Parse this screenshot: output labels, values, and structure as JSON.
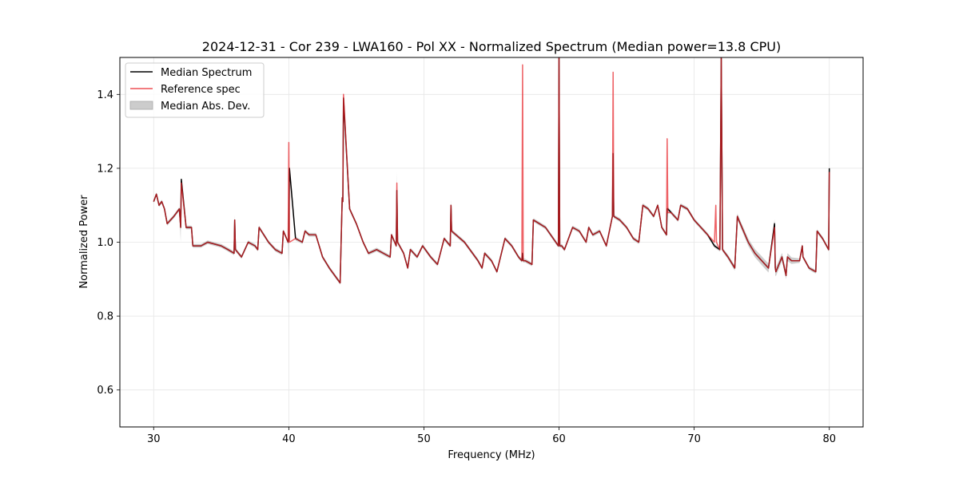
{
  "chart_data": {
    "type": "line",
    "title": "2024-12-31 - Cor 239 - LWA160 - Pol XX - Normalized Spectrum (Median power=13.8 CPU)",
    "xlabel": "Frequency (MHz)",
    "ylabel": "Normalized Power",
    "xlim": [
      27.5,
      82.5
    ],
    "ylim": [
      0.5,
      1.5
    ],
    "x_ticks": [
      30,
      40,
      50,
      60,
      70,
      80
    ],
    "y_ticks": [
      0.6,
      0.8,
      1.0,
      1.2,
      1.4
    ],
    "grid": true,
    "legend": {
      "placement": "top-left",
      "entries": [
        {
          "label": "Median Spectrum",
          "style": "line",
          "color": "#000000"
        },
        {
          "label": "Reference spec",
          "style": "line",
          "color": "#e8262b"
        },
        {
          "label": "Median Abs. Dev.",
          "style": "patch",
          "color": "#cccccc"
        }
      ]
    },
    "colors": {
      "median": "#000000",
      "reference": "#e8262b",
      "mad": "#c8c8c8"
    },
    "series": [
      {
        "name": "Median Spectrum",
        "x": [
          30.0,
          30.2,
          30.4,
          30.6,
          30.8,
          31.0,
          31.5,
          31.9,
          32.0,
          32.05,
          32.4,
          32.8,
          32.9,
          33.5,
          34.0,
          35.0,
          35.5,
          35.95,
          36.0,
          36.05,
          36.5,
          37.0,
          37.5,
          37.7,
          37.8,
          38.5,
          39.0,
          39.5,
          39.6,
          39.95,
          40.0,
          40.05,
          40.5,
          41.0,
          41.2,
          41.5,
          42.0,
          42.5,
          43.0,
          43.8,
          43.95,
          44.0,
          44.05,
          44.5,
          45.0,
          45.5,
          45.9,
          46.5,
          47.0,
          47.5,
          47.6,
          47.95,
          48.0,
          48.05,
          48.5,
          48.8,
          49.0,
          49.5,
          49.9,
          50.5,
          51.0,
          51.5,
          51.95,
          52.0,
          52.05,
          53.0,
          54.0,
          54.3,
          54.5,
          55.0,
          55.4,
          56.0,
          56.5,
          57.0,
          57.25,
          57.3,
          57.35,
          57.5,
          58.0,
          58.1,
          59.0,
          59.95,
          60.0,
          60.05,
          60.2,
          60.4,
          61.0,
          61.5,
          62.0,
          62.2,
          62.5,
          63.0,
          63.5,
          63.95,
          64.0,
          64.05,
          64.5,
          65.0,
          65.5,
          65.9,
          66.2,
          66.6,
          67.0,
          67.3,
          67.6,
          67.95,
          68.0,
          68.05,
          68.3,
          68.8,
          69.0,
          69.5,
          70.0,
          70.5,
          71.0,
          71.5,
          71.9,
          72.0,
          72.1,
          72.5,
          73.0,
          73.2,
          73.3,
          74.0,
          74.5,
          75.0,
          75.5,
          75.95,
          76.0,
          76.05,
          76.5,
          76.8,
          76.9,
          77.2,
          77.8,
          78.0,
          78.05,
          78.5,
          79.0,
          79.1,
          79.5,
          79.95,
          80.0
        ],
        "y": [
          1.11,
          1.13,
          1.1,
          1.11,
          1.09,
          1.05,
          1.07,
          1.09,
          1.04,
          1.17,
          1.04,
          1.04,
          0.99,
          0.99,
          1.0,
          0.99,
          0.98,
          0.97,
          1.06,
          0.98,
          0.96,
          1.0,
          0.99,
          0.98,
          1.04,
          1.0,
          0.98,
          0.97,
          1.03,
          1.0,
          1.01,
          1.2,
          1.01,
          1.0,
          1.03,
          1.02,
          1.02,
          0.96,
          0.93,
          0.89,
          1.12,
          1.11,
          1.39,
          1.09,
          1.05,
          1.0,
          0.97,
          0.98,
          0.97,
          0.96,
          1.02,
          0.99,
          1.14,
          1.0,
          0.97,
          0.93,
          0.98,
          0.96,
          0.99,
          0.96,
          0.94,
          1.01,
          0.99,
          1.1,
          1.03,
          1.0,
          0.95,
          0.93,
          0.97,
          0.95,
          0.92,
          1.01,
          0.99,
          0.96,
          0.95,
          0.97,
          0.95,
          0.95,
          0.94,
          1.06,
          1.04,
          0.99,
          1.5,
          0.99,
          0.99,
          0.98,
          1.04,
          1.03,
          1.0,
          1.04,
          1.02,
          1.03,
          0.99,
          1.07,
          1.24,
          1.07,
          1.06,
          1.04,
          1.01,
          1.0,
          1.1,
          1.09,
          1.07,
          1.1,
          1.04,
          1.02,
          1.09,
          1.09,
          1.08,
          1.06,
          1.1,
          1.09,
          1.06,
          1.04,
          1.02,
          0.99,
          0.98,
          1.5,
          0.98,
          0.96,
          0.93,
          1.07,
          1.06,
          1.0,
          0.97,
          0.95,
          0.93,
          1.05,
          0.93,
          0.92,
          0.96,
          0.91,
          0.96,
          0.95,
          0.95,
          0.99,
          0.96,
          0.93,
          0.92,
          1.03,
          1.01,
          0.98,
          1.2
        ]
      },
      {
        "name": "Reference spec",
        "x": [
          30.0,
          30.2,
          30.4,
          30.6,
          30.8,
          31.0,
          31.5,
          31.9,
          32.0,
          32.05,
          32.4,
          32.8,
          32.9,
          33.5,
          34.0,
          35.0,
          35.5,
          35.95,
          36.0,
          36.05,
          36.5,
          37.0,
          37.5,
          37.7,
          37.8,
          38.5,
          39.0,
          39.5,
          39.6,
          39.95,
          40.0,
          40.05,
          40.5,
          41.0,
          41.2,
          41.5,
          42.0,
          42.5,
          43.0,
          43.8,
          43.95,
          44.0,
          44.05,
          44.5,
          45.0,
          45.5,
          45.9,
          46.5,
          47.0,
          47.5,
          47.6,
          47.95,
          48.0,
          48.05,
          48.5,
          48.8,
          49.0,
          49.5,
          49.9,
          50.5,
          51.0,
          51.5,
          51.95,
          52.0,
          52.05,
          53.0,
          54.0,
          54.3,
          54.5,
          55.0,
          55.4,
          56.0,
          56.5,
          57.0,
          57.25,
          57.3,
          57.35,
          57.5,
          58.0,
          58.1,
          59.0,
          59.95,
          60.0,
          60.05,
          60.2,
          60.4,
          61.0,
          61.5,
          62.0,
          62.2,
          62.5,
          63.0,
          63.5,
          63.95,
          64.0,
          64.05,
          64.5,
          65.0,
          65.5,
          65.9,
          66.2,
          66.6,
          67.0,
          67.3,
          67.6,
          67.95,
          68.0,
          68.05,
          68.3,
          68.8,
          69.0,
          69.5,
          70.0,
          70.5,
          71.0,
          71.5,
          71.6,
          71.65,
          71.9,
          72.0,
          72.1,
          72.5,
          73.0,
          73.2,
          73.3,
          74.0,
          74.5,
          75.0,
          75.5,
          75.95,
          76.0,
          76.05,
          76.5,
          76.8,
          76.9,
          77.2,
          77.8,
          78.0,
          78.05,
          78.5,
          79.0,
          79.1,
          79.5,
          79.95,
          80.0
        ],
        "y": [
          1.11,
          1.13,
          1.1,
          1.11,
          1.09,
          1.05,
          1.07,
          1.09,
          1.04,
          1.16,
          1.04,
          1.04,
          0.99,
          0.99,
          1.0,
          0.99,
          0.98,
          0.97,
          1.06,
          0.98,
          0.96,
          1.0,
          0.99,
          0.98,
          1.04,
          1.0,
          0.98,
          0.97,
          1.03,
          1.0,
          1.27,
          1.0,
          1.01,
          1.0,
          1.03,
          1.02,
          1.02,
          0.96,
          0.93,
          0.89,
          1.12,
          1.11,
          1.4,
          1.09,
          1.05,
          1.0,
          0.97,
          0.98,
          0.97,
          0.96,
          1.02,
          0.99,
          1.16,
          1.0,
          0.97,
          0.93,
          0.98,
          0.96,
          0.99,
          0.96,
          0.94,
          1.01,
          0.99,
          1.1,
          1.03,
          1.0,
          0.95,
          0.93,
          0.97,
          0.95,
          0.92,
          1.01,
          0.99,
          0.96,
          0.95,
          1.48,
          0.95,
          0.95,
          0.94,
          1.06,
          1.04,
          0.99,
          1.5,
          0.99,
          0.99,
          0.98,
          1.04,
          1.03,
          1.0,
          1.04,
          1.02,
          1.03,
          0.99,
          1.07,
          1.46,
          1.07,
          1.06,
          1.04,
          1.01,
          1.0,
          1.1,
          1.09,
          1.07,
          1.1,
          1.04,
          1.02,
          1.28,
          1.08,
          1.08,
          1.06,
          1.1,
          1.09,
          1.06,
          1.04,
          1.02,
          1.0,
          1.1,
          1.0,
          0.98,
          1.5,
          0.98,
          0.96,
          0.93,
          1.07,
          1.06,
          1.0,
          0.97,
          0.95,
          0.93,
          1.04,
          0.93,
          0.92,
          0.96,
          0.91,
          0.96,
          0.95,
          0.95,
          0.99,
          0.96,
          0.93,
          0.92,
          1.03,
          1.01,
          0.98,
          1.19
        ]
      }
    ],
    "mad_band": {
      "name": "Median Abs. Dev.",
      "x": [
        30.0,
        31.9,
        32.0,
        32.05,
        35.95,
        36.0,
        36.05,
        39.95,
        40.0,
        40.05,
        43.8,
        43.95,
        44.0,
        44.05,
        47.95,
        48.0,
        48.05,
        51.95,
        52.0,
        52.05,
        59.95,
        60.0,
        60.05,
        63.95,
        64.0,
        64.05,
        71.9,
        72.0,
        72.1,
        74.0,
        75.0,
        75.95,
        76.0,
        76.05,
        77.0,
        78.0,
        79.95,
        80.0
      ],
      "half_width": [
        0.005,
        0.005,
        0.04,
        0.005,
        0.005,
        0.015,
        0.005,
        0.005,
        0.1,
        0.005,
        0.005,
        0.005,
        0.03,
        0.005,
        0.005,
        0.05,
        0.005,
        0.005,
        0.015,
        0.005,
        0.005,
        0.02,
        0.005,
        0.005,
        0.07,
        0.005,
        0.005,
        0.02,
        0.005,
        0.01,
        0.012,
        0.012,
        0.02,
        0.012,
        0.01,
        0.005,
        0.005,
        0.02
      ]
    }
  }
}
